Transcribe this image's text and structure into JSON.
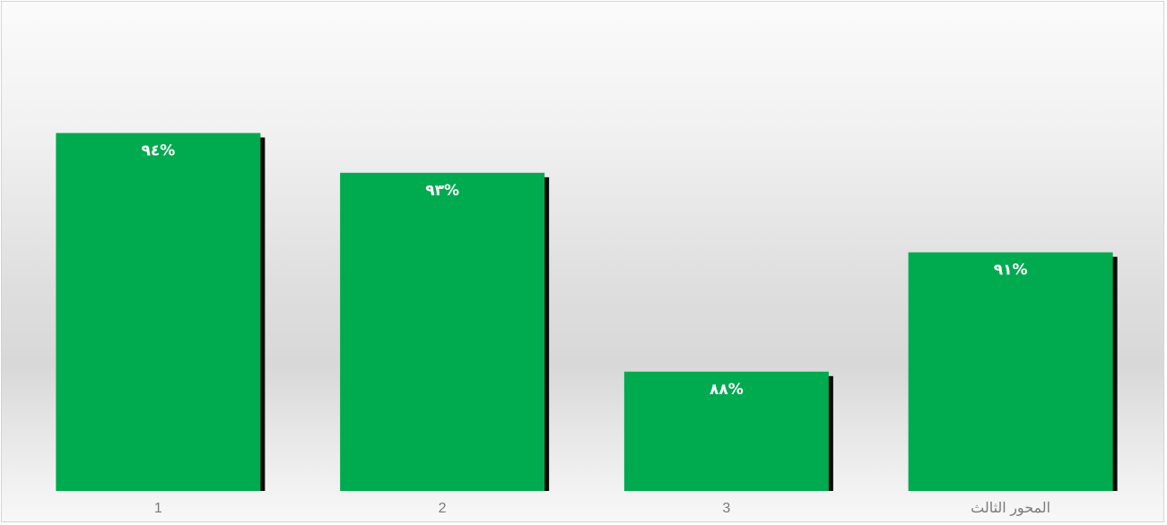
{
  "chart_data": {
    "type": "bar",
    "categories": [
      "1",
      "2",
      "3",
      "المحور الثالث"
    ],
    "values": [
      94,
      93,
      88,
      91
    ],
    "data_labels": [
      "٩٤%",
      "٩٣%",
      "٨٨%",
      "٩١%"
    ],
    "title": "",
    "xlabel": "",
    "ylabel": "",
    "ylim": [
      85,
      95.7
    ],
    "grid": false,
    "legend": "none",
    "colors": {
      "bar": "#00aa4f",
      "shadow": "#0a0a0a",
      "tick_text": "#7a7a7a",
      "label_text": "#ffffff"
    }
  }
}
